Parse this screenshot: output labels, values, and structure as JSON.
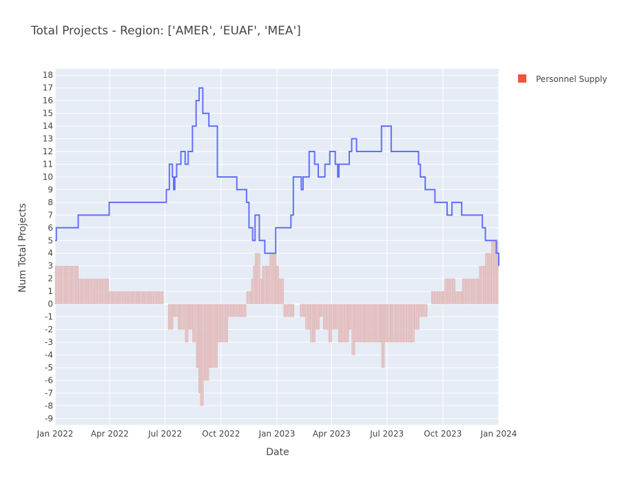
{
  "chart_data": {
    "type": "bar",
    "title": "Total Projects - Region: ['AMER', 'EUAF', 'MEA']",
    "xlabel": "Date",
    "ylabel": "Num Total Projects",
    "x_range": [
      "2022-01-01",
      "2024-01-01"
    ],
    "ylim": [
      -9.5,
      18.5
    ],
    "grid": true,
    "legend_position": "top-right",
    "colors": {
      "plot_bg": "#e5ecf6",
      "grid": "#ffffff",
      "line": "#636efa",
      "bar_fill": "#e6c3c3",
      "bar_edge": "#d9a9a9",
      "legend_marker": "#ef553b"
    },
    "x_ticks": [
      {
        "date": "2022-01-01",
        "label": "Jan 2022"
      },
      {
        "date": "2022-04-01",
        "label": "Apr 2022"
      },
      {
        "date": "2022-07-01",
        "label": "Jul 2022"
      },
      {
        "date": "2022-10-01",
        "label": "Oct 2022"
      },
      {
        "date": "2023-01-01",
        "label": "Jan 2023"
      },
      {
        "date": "2023-04-01",
        "label": "Apr 2023"
      },
      {
        "date": "2023-07-01",
        "label": "Jul 2023"
      },
      {
        "date": "2023-10-01",
        "label": "Oct 2023"
      },
      {
        "date": "2024-01-01",
        "label": "Jan 2024"
      }
    ],
    "y_ticks": [
      18,
      17,
      16,
      15,
      14,
      13,
      12,
      11,
      10,
      9,
      8,
      7,
      6,
      5,
      4,
      3,
      2,
      1,
      0,
      -1,
      -2,
      -3,
      -4,
      -5,
      -6,
      -7,
      -8,
      -9
    ],
    "series": [
      {
        "name": "Total Projects",
        "type": "line",
        "x": [
          "2022-01-01",
          "2022-01-03",
          "2022-02-08",
          "2022-03-31",
          "2022-06-29",
          "2022-07-03",
          "2022-07-08",
          "2022-07-13",
          "2022-07-15",
          "2022-07-17",
          "2022-07-20",
          "2022-07-27",
          "2022-08-03",
          "2022-08-08",
          "2022-08-15",
          "2022-08-21",
          "2022-08-26",
          "2022-08-28",
          "2022-09-01",
          "2022-09-03",
          "2022-09-11",
          "2022-09-25",
          "2022-10-13",
          "2022-10-27",
          "2022-11-12",
          "2022-11-14",
          "2022-11-16",
          "2022-11-22",
          "2022-11-23",
          "2022-11-26",
          "2022-12-03",
          "2022-12-12",
          "2022-12-30",
          "2023-01-01",
          "2023-01-24",
          "2023-01-28",
          "2023-02-08",
          "2023-02-10",
          "2023-02-13",
          "2023-02-23",
          "2023-03-04",
          "2023-03-10",
          "2023-03-21",
          "2023-03-29",
          "2023-03-31",
          "2023-04-07",
          "2023-04-11",
          "2023-04-13",
          "2023-04-25",
          "2023-04-30",
          "2023-05-04",
          "2023-05-12",
          "2023-06-22",
          "2023-07-08",
          "2023-08-15",
          "2023-08-22",
          "2023-08-25",
          "2023-09-02",
          "2023-09-08",
          "2023-09-18",
          "2023-10-08",
          "2023-10-16",
          "2023-11-01",
          "2023-12-05",
          "2023-12-10",
          "2023-12-16",
          "2023-12-28",
          "2024-01-01"
        ],
        "y": [
          5,
          6,
          7,
          8,
          8,
          9,
          11,
          10,
          9,
          10,
          11,
          12,
          11,
          12,
          14,
          16,
          17,
          17,
          15,
          15,
          14,
          10,
          10,
          9,
          8,
          8,
          6,
          5,
          5,
          7,
          5,
          4,
          6,
          6,
          7,
          10,
          10,
          9,
          10,
          12,
          11,
          10,
          11,
          12,
          12,
          11,
          10,
          11,
          11,
          12,
          13,
          12,
          14,
          12,
          12,
          11,
          10,
          9,
          9,
          8,
          7,
          8,
          7,
          6,
          5,
          5,
          4,
          3
        ]
      },
      {
        "name": "Personnel Supply",
        "type": "bar",
        "x": [
          "2022-01-01",
          "2022-02-08",
          "2022-03-31",
          "2022-06-29",
          "2022-07-06",
          "2022-07-13",
          "2022-07-22",
          "2022-08-03",
          "2022-08-08",
          "2022-08-15",
          "2022-08-21",
          "2022-08-25",
          "2022-08-28",
          "2022-09-03",
          "2022-09-11",
          "2022-09-25",
          "2022-10-13",
          "2022-11-12",
          "2022-11-20",
          "2022-11-23",
          "2022-11-26",
          "2022-12-03",
          "2022-12-08",
          "2022-12-20",
          "2022-12-30",
          "2023-01-04",
          "2023-01-12",
          "2023-01-24",
          "2023-01-28",
          "2023-02-08",
          "2023-02-17",
          "2023-02-25",
          "2023-03-04",
          "2023-03-12",
          "2023-03-18",
          "2023-03-27",
          "2023-03-31",
          "2023-04-06",
          "2023-04-12",
          "2023-04-28",
          "2023-05-04",
          "2023-05-08",
          "2023-05-25",
          "2023-06-22",
          "2023-06-27",
          "2023-07-08",
          "2023-08-15",
          "2023-08-22",
          "2023-09-06",
          "2023-09-12",
          "2023-09-26",
          "2023-10-01",
          "2023-10-04",
          "2023-10-22",
          "2023-11-02",
          "2023-11-26",
          "2023-11-30",
          "2023-12-10",
          "2023-12-20"
        ],
        "y": [
          3,
          2,
          1,
          0,
          -2,
          -1,
          -2,
          -3,
          -2,
          -3,
          -5,
          -7,
          -8,
          -6,
          -5,
          -3,
          -1,
          1,
          2,
          3,
          4,
          2,
          3,
          4,
          3,
          2,
          -1,
          -1,
          0,
          -1,
          -2,
          -3,
          -2,
          -1,
          -2,
          -3,
          -2,
          -2,
          -3,
          -2,
          -4,
          -3,
          -3,
          -5,
          -3,
          -3,
          -2,
          -1,
          0,
          1,
          1,
          1,
          2,
          1,
          2,
          2,
          3,
          4,
          5
        ],
        "x_end": "2024-01-01"
      }
    ],
    "legend": [
      {
        "label": "Personnel Supply",
        "marker": "square"
      }
    ]
  }
}
